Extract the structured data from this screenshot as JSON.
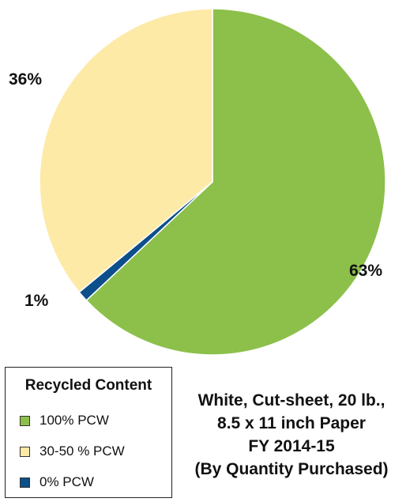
{
  "chart_data": {
    "type": "pie",
    "slices": [
      {
        "label": "100% PCW",
        "value": 63,
        "value_label": "63%",
        "color": "#8cc04b"
      },
      {
        "label": "0% PCW",
        "value": 1,
        "value_label": "1%",
        "color": "#0d4f8b"
      },
      {
        "label": "30-50 % PCW",
        "value": 36,
        "value_label": "36%",
        "color": "#fdeaa7"
      }
    ],
    "legend": {
      "title": "Recycled Content",
      "placement": "bottom-left"
    },
    "title_lines": [
      "White, Cut-sheet, 20 lb.,",
      "8.5 x 11 inch Paper",
      "FY 2014-15",
      "(By Quantity Purchased)"
    ],
    "start_angle": "top",
    "direction": "clockwise"
  },
  "legend_items": [
    {
      "label": "100% PCW",
      "color": "#8cc04b"
    },
    {
      "label": "30-50 % PCW",
      "color": "#fdeaa7"
    },
    {
      "label": "0% PCW",
      "color": "#0d4f8b"
    }
  ]
}
